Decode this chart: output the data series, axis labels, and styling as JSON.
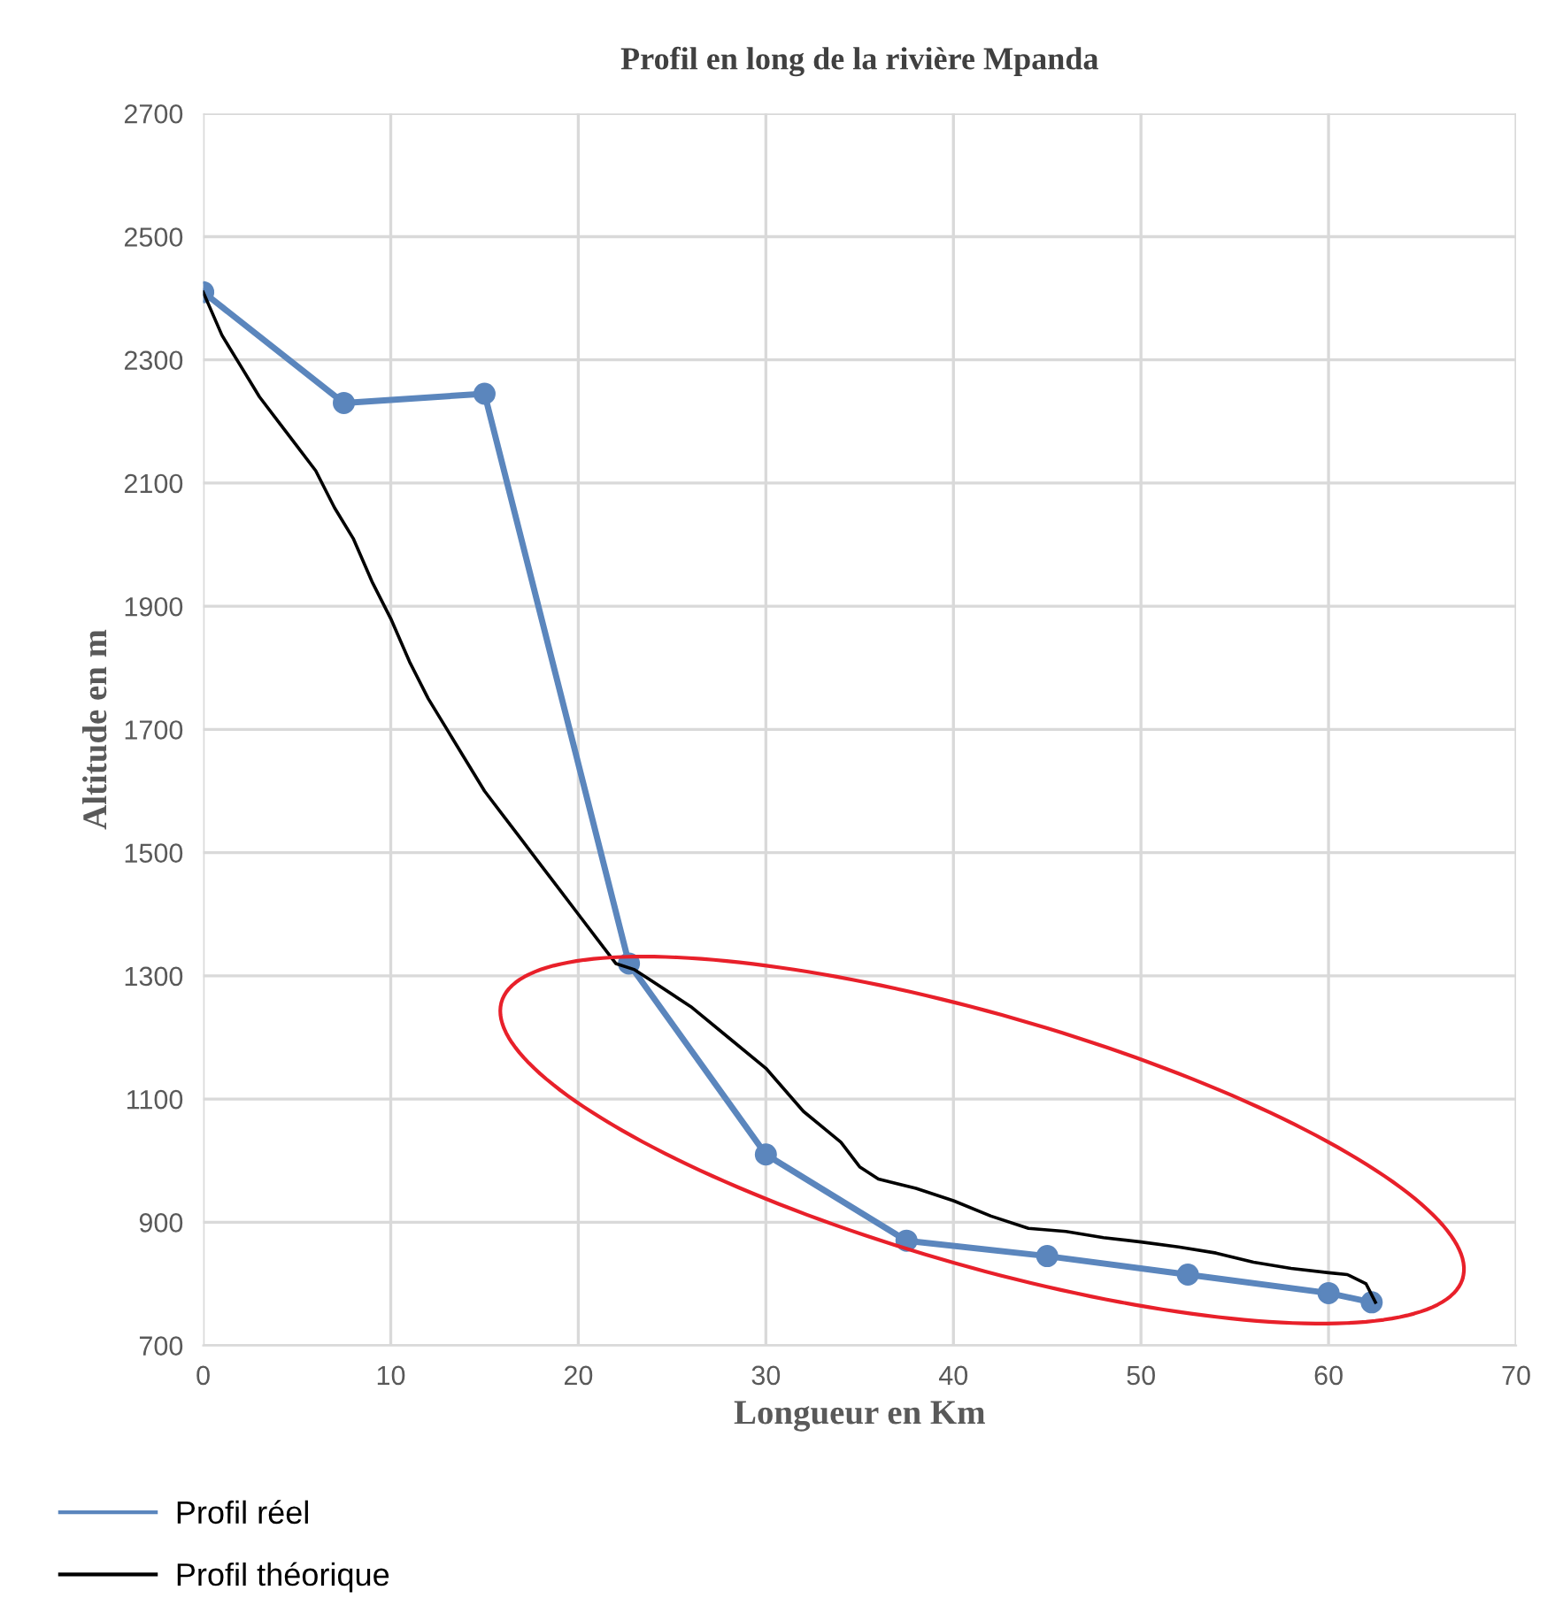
{
  "chart_data": {
    "type": "line",
    "title": "Profil en long de la rivière Mpanda",
    "xlabel": "Longueur en Km",
    "ylabel": "Altitude en m",
    "xlim": [
      0,
      70
    ],
    "xticks": [
      0,
      10,
      20,
      30,
      40,
      50,
      60,
      70
    ],
    "ylim": [
      700,
      2700
    ],
    "yticks": [
      700,
      900,
      1100,
      1300,
      1500,
      1700,
      1900,
      2100,
      2300,
      2500,
      2700
    ],
    "grid": true,
    "legend": "bottom left",
    "series": [
      {
        "name": "Profil réel",
        "color": "#5b86bd",
        "marker": "circle",
        "x": [
          0,
          7.5,
          15,
          22.7,
          30,
          37.5,
          45,
          52.5,
          60,
          62.3
        ],
        "values": [
          2410,
          2230,
          2245,
          1320,
          1010,
          870,
          845,
          815,
          785,
          770
        ]
      },
      {
        "name": "Profil théorique",
        "color": "#000000",
        "marker": "none",
        "x": [
          0,
          1,
          2,
          3,
          4,
          5,
          6,
          7,
          8,
          9,
          10,
          11,
          12,
          13,
          14,
          15,
          16,
          17,
          18,
          19,
          20,
          21,
          22,
          23,
          24,
          26,
          28,
          30,
          32,
          34,
          35,
          36,
          38,
          40,
          42,
          44,
          46,
          48,
          50,
          52,
          54,
          56,
          58,
          60,
          61,
          62,
          62.5
        ],
        "values": [
          2410,
          2340,
          2290,
          2240,
          2200,
          2160,
          2120,
          2060,
          2010,
          1940,
          1880,
          1810,
          1750,
          1700,
          1650,
          1600,
          1560,
          1520,
          1480,
          1440,
          1400,
          1360,
          1320,
          1310,
          1290,
          1250,
          1200,
          1150,
          1080,
          1030,
          990,
          970,
          955,
          935,
          910,
          890,
          885,
          875,
          868,
          860,
          850,
          835,
          825,
          818,
          815,
          800,
          770
        ]
      }
    ]
  }
}
